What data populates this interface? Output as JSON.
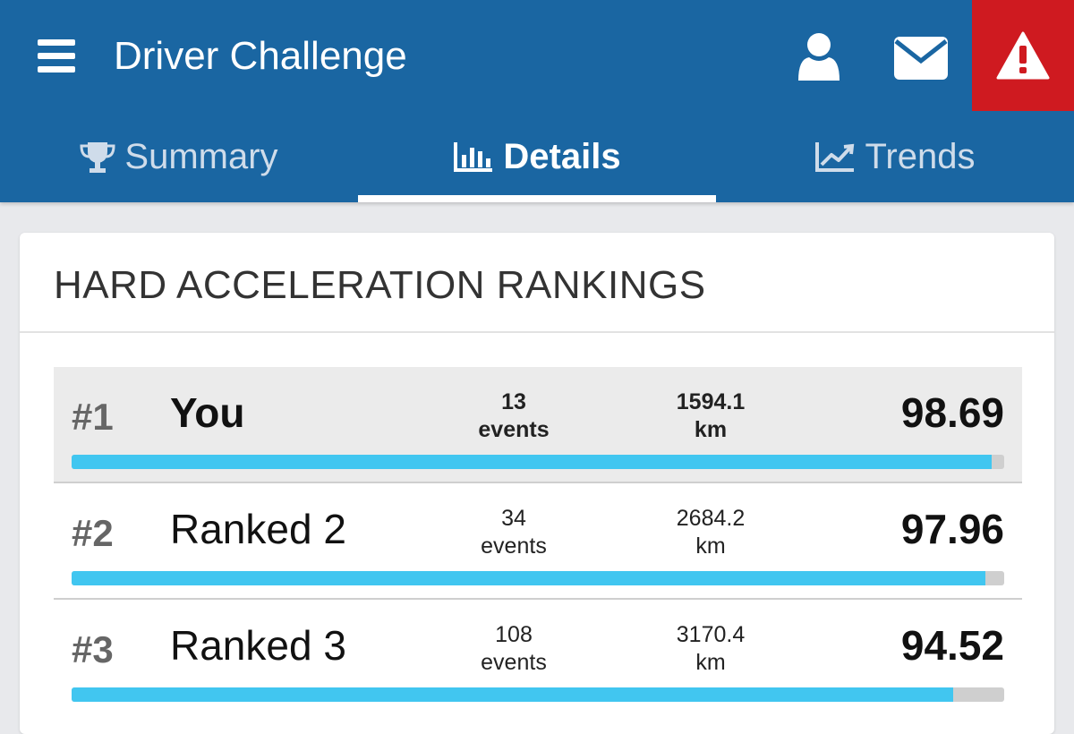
{
  "header": {
    "title": "Driver Challenge",
    "icons": [
      "menu-icon",
      "user-icon",
      "mail-icon",
      "alert-icon"
    ]
  },
  "tabs": [
    {
      "label": "Summary",
      "icon": "trophy-icon",
      "active": false
    },
    {
      "label": "Details",
      "icon": "bar-chart-icon",
      "active": true
    },
    {
      "label": "Trends",
      "icon": "line-chart-icon",
      "active": false
    }
  ],
  "rankings": {
    "title": "HARD ACCELERATION RANKINGS",
    "rows": [
      {
        "rank": "#1",
        "name": "You",
        "events_count": "13",
        "events_unit": "events",
        "distance": "1594.1",
        "distance_unit": "km",
        "score": "98.69",
        "progress": 0.9869
      },
      {
        "rank": "#2",
        "name": "Ranked 2",
        "events_count": "34",
        "events_unit": "events",
        "distance": "2684.2",
        "distance_unit": "km",
        "score": "97.96",
        "progress": 0.9796
      },
      {
        "rank": "#3",
        "name": "Ranked 3",
        "events_count": "108",
        "events_unit": "events",
        "distance": "3170.4",
        "distance_unit": "km",
        "score": "94.52",
        "progress": 0.9452
      }
    ]
  },
  "colors": {
    "header": "#1a66a2",
    "alert": "#cf1a20",
    "progress": "#41c6f0",
    "highlight_row": "#ebebeb"
  }
}
